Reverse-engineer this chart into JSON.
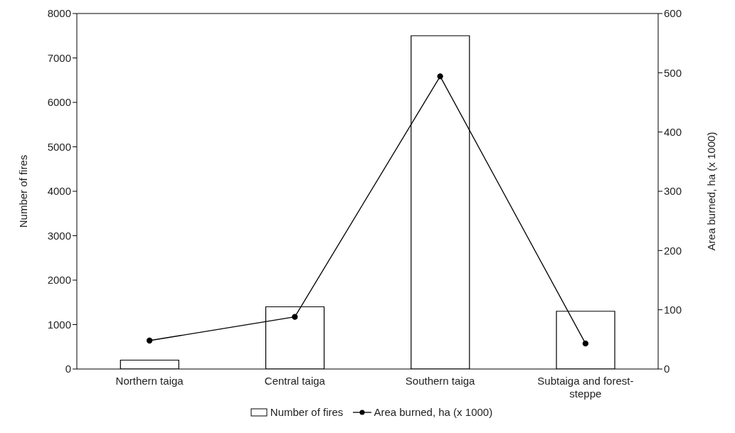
{
  "chart_data": {
    "type": "bar",
    "categories": [
      "Northern taiga",
      "Central taiga",
      "Southern taiga",
      "Subtaiga and forest-steppe"
    ],
    "series": [
      {
        "name": "Number of fires",
        "color": "#ffffff",
        "values": [
          200,
          1400,
          7500,
          1300
        ]
      },
      {
        "name": "Area burned, ha (x 1000)",
        "type": "line",
        "axis": "y2",
        "color": "#000000",
        "values": [
          48,
          88,
          494,
          43
        ]
      }
    ],
    "ylabel": "Number of fires",
    "y2label": "Area burned, ha (x 1000)",
    "ylim": [
      0,
      8000
    ],
    "yticks": [
      0,
      1000,
      2000,
      3000,
      4000,
      5000,
      6000,
      7000,
      8000
    ],
    "y2lim": [
      0,
      600
    ],
    "y2ticks": [
      0,
      100,
      200,
      300,
      400,
      500,
      600
    ],
    "legend": "bottom",
    "marker": "circle",
    "line_style": "solid",
    "grid": false
  }
}
